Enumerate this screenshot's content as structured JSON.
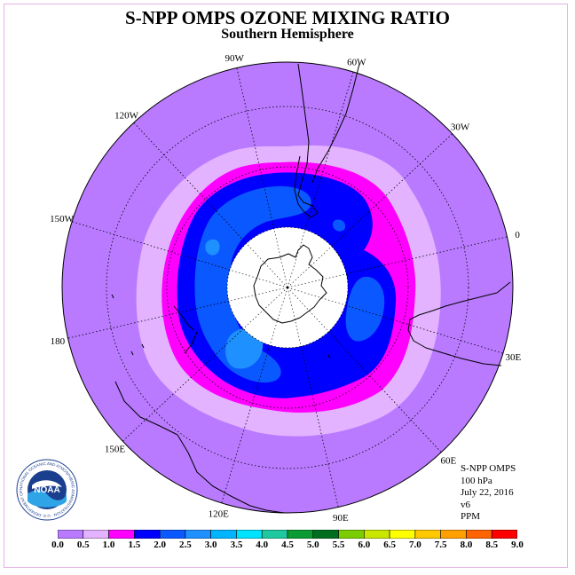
{
  "title": "S-NPP OMPS OZONE MIXING RATIO",
  "subtitle": "Southern Hemisphere",
  "longitude_labels": [
    "90W",
    "60W",
    "30W",
    "0",
    "30E",
    "60E",
    "90E",
    "120E",
    "150E",
    "180",
    "150W",
    "120W"
  ],
  "info": {
    "instrument": "S-NPP OMPS",
    "pressure": "100 hPa",
    "date": "July 22, 2016",
    "version": "v6",
    "units": "PPM"
  },
  "logo": {
    "text": "NOAA",
    "ring_text": "NATIONAL OCEANIC AND ATMOSPHERIC ADMINISTRATION · U.S. DEPARTMENT OF COMMERCE"
  },
  "colorbar": {
    "labels": [
      "0.0",
      "0.5",
      "1.0",
      "1.5",
      "2.0",
      "2.5",
      "3.0",
      "3.5",
      "4.0",
      "4.5",
      "5.0",
      "5.5",
      "6.0",
      "6.5",
      "7.0",
      "7.5",
      "8.0",
      "8.5",
      "9.0"
    ],
    "colors": [
      "#b97aff",
      "#e3b3ff",
      "#ff00ff",
      "#0000ff",
      "#0a58ff",
      "#1e90ff",
      "#00b4ff",
      "#00e3ff",
      "#1ec8a0",
      "#0a9b32",
      "#006e1e",
      "#7acd00",
      "#c8e600",
      "#ffff00",
      "#ffc800",
      "#ffa000",
      "#ff6400",
      "#ff0000",
      "#8b4513"
    ]
  },
  "colors": {
    "outer_ozone": "#b97aff",
    "ring_0_5": "#e3b3ff",
    "ring_1_0": "#ff00ff",
    "ring_1_5": "#0000ff",
    "ring_2_0": "#0a58ff",
    "ring_2_5": "#1e90ff",
    "no_data": "#ffffff"
  }
}
